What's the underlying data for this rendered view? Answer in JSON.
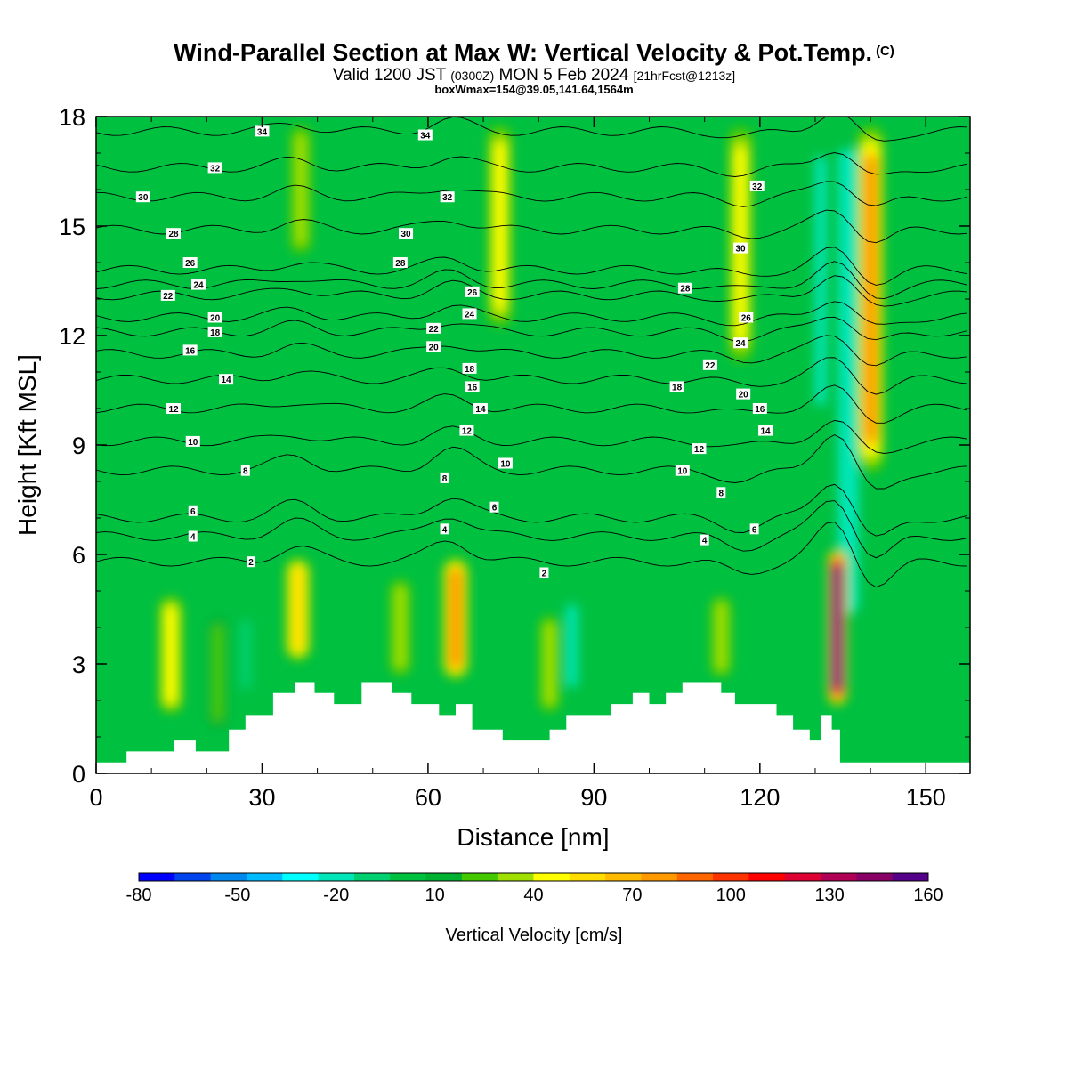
{
  "header": {
    "title": "Wind-Parallel Section at Max W: Vertical Velocity & Pot.Temp.",
    "title_suffix": "(C)",
    "valid_prefix": "Valid 1200 JST",
    "valid_zulu": "(0300Z)",
    "valid_date": "MON 5 Feb 2024",
    "valid_fcst": "[21hrFcst@1213z]",
    "boxinfo": "boxWmax=154@39.05,141.64,1564m"
  },
  "chart_data": {
    "type": "heatmap",
    "title": "Wind-Parallel Section at Max W: Vertical Velocity & Pot.Temp.",
    "xlabel": "Distance [nm]",
    "ylabel": "Height [Kft MSL]",
    "xlim": [
      0,
      158
    ],
    "ylim": [
      0,
      18
    ],
    "xticks": [
      0,
      30,
      60,
      90,
      120,
      150
    ],
    "yticks": [
      0,
      3,
      6,
      9,
      12,
      15,
      18
    ],
    "colorbar": {
      "label": "Vertical Velocity [cm/s]",
      "min": -80,
      "max": 160,
      "tick_values": [
        -80,
        -50,
        -20,
        10,
        40,
        70,
        100,
        130,
        160
      ],
      "colors": [
        "#0000ff",
        "#0044ee",
        "#0088ee",
        "#00bbff",
        "#00ffff",
        "#00e6b8",
        "#00d070",
        "#00c040",
        "#00b030",
        "#44c800",
        "#a0e000",
        "#ffff00",
        "#ffdd00",
        "#ffbb00",
        "#ff9900",
        "#ff6600",
        "#ff3300",
        "#ff0000",
        "#dd0033",
        "#b00055",
        "#880066",
        "#550088"
      ]
    },
    "updrafts": [
      {
        "x": 13.5,
        "zmin": 1.5,
        "zmax": 5.0,
        "w": 45
      },
      {
        "x": 22,
        "zmin": 1.0,
        "zmax": 4.5,
        "w": 25
      },
      {
        "x": 36.5,
        "zmin": 3.0,
        "zmax": 6.0,
        "w": 55
      },
      {
        "x": 55,
        "zmin": 2.5,
        "zmax": 5.5,
        "w": 35
      },
      {
        "x": 65,
        "zmin": 2.5,
        "zmax": 6.0,
        "w": 75
      },
      {
        "x": 82,
        "zmin": 1.5,
        "zmax": 4.5,
        "w": 30
      },
      {
        "x": 113,
        "zmin": 2.5,
        "zmax": 5.0,
        "w": 35
      },
      {
        "x": 134,
        "zmin": 1.8,
        "zmax": 6.2,
        "w": 150
      },
      {
        "x": 140,
        "zmin": 8.0,
        "zmax": 18.0,
        "w": 75
      },
      {
        "x": 116.5,
        "zmin": 11.0,
        "zmax": 18.0,
        "w": 45
      },
      {
        "x": 73,
        "zmin": 12.0,
        "zmax": 18.0,
        "w": 40
      },
      {
        "x": 37,
        "zmin": 14.0,
        "zmax": 18.0,
        "w": 30
      }
    ],
    "downdrafts": [
      {
        "x": 136,
        "zmin": 3.5,
        "zmax": 18.0,
        "w": -25
      },
      {
        "x": 131,
        "zmin": 9.0,
        "zmax": 18.0,
        "w": -20
      },
      {
        "x": 86,
        "zmin": 2.0,
        "zmax": 5.0,
        "w": -15
      },
      {
        "x": 27,
        "zmin": 2.0,
        "zmax": 4.5,
        "w": -10
      }
    ],
    "terrain": {
      "x": [
        0,
        5.5,
        5.5,
        14,
        14,
        18,
        18,
        24,
        24,
        27,
        27,
        32,
        32,
        36,
        36,
        39.5,
        39.5,
        43,
        43,
        48,
        48,
        53.5,
        53.5,
        57,
        57,
        62,
        62,
        65,
        65,
        68,
        68,
        73.5,
        73.5,
        82,
        82,
        85,
        85,
        93,
        93,
        97,
        97,
        100,
        100,
        103,
        103,
        106,
        106,
        113,
        113,
        115.5,
        115.5,
        123,
        123,
        126,
        126,
        129,
        129,
        131,
        131,
        133,
        133,
        134.5,
        134.5,
        137,
        137,
        158
      ],
      "z": [
        0.3,
        0.3,
        0.6,
        0.6,
        0.9,
        0.9,
        0.6,
        0.6,
        1.2,
        1.2,
        1.6,
        1.6,
        2.2,
        2.2,
        2.5,
        2.5,
        2.2,
        2.2,
        1.9,
        1.9,
        2.5,
        2.5,
        2.2,
        2.2,
        1.9,
        1.9,
        1.6,
        1.6,
        1.9,
        1.9,
        1.2,
        1.2,
        0.9,
        0.9,
        1.2,
        1.2,
        1.6,
        1.6,
        1.9,
        1.9,
        2.2,
        2.2,
        1.9,
        1.9,
        2.2,
        2.2,
        2.5,
        2.5,
        2.2,
        2.2,
        1.9,
        1.9,
        1.6,
        1.6,
        1.2,
        1.2,
        0.9,
        0.9,
        1.6,
        1.6,
        1.2,
        1.2,
        0.3,
        0.3,
        0.3,
        0.3
      ]
    },
    "isentropes": {
      "levels": [
        2,
        4,
        6,
        8,
        10,
        12,
        14,
        16,
        18,
        20,
        22,
        24,
        26,
        28,
        30,
        32,
        34
      ],
      "base_heights": [
        5.8,
        6.5,
        7.0,
        8.3,
        9.1,
        10.0,
        10.8,
        11.5,
        12.1,
        12.5,
        13.1,
        13.4,
        13.8,
        14.9,
        15.8,
        16.6,
        17.6
      ],
      "labels": [
        {
          "text": "2",
          "x": 28,
          "z": 5.8
        },
        {
          "text": "2",
          "x": 81,
          "z": 5.5
        },
        {
          "text": "4",
          "x": 17.5,
          "z": 6.5
        },
        {
          "text": "4",
          "x": 63,
          "z": 6.7
        },
        {
          "text": "4",
          "x": 110,
          "z": 6.4
        },
        {
          "text": "6",
          "x": 17.5,
          "z": 7.2
        },
        {
          "text": "6",
          "x": 72,
          "z": 7.3
        },
        {
          "text": "6",
          "x": 119,
          "z": 6.7
        },
        {
          "text": "8",
          "x": 27,
          "z": 8.3
        },
        {
          "text": "8",
          "x": 63,
          "z": 8.1
        },
        {
          "text": "8",
          "x": 113,
          "z": 7.7
        },
        {
          "text": "10",
          "x": 17.5,
          "z": 9.1
        },
        {
          "text": "10",
          "x": 74,
          "z": 8.5
        },
        {
          "text": "10",
          "x": 106,
          "z": 8.3
        },
        {
          "text": "12",
          "x": 14,
          "z": 10.0
        },
        {
          "text": "12",
          "x": 67,
          "z": 9.4
        },
        {
          "text": "12",
          "x": 109,
          "z": 8.9
        },
        {
          "text": "14",
          "x": 23.5,
          "z": 10.8
        },
        {
          "text": "14",
          "x": 69.5,
          "z": 10.0
        },
        {
          "text": "14",
          "x": 121,
          "z": 9.4
        },
        {
          "text": "16",
          "x": 17,
          "z": 11.6
        },
        {
          "text": "16",
          "x": 68,
          "z": 10.6
        },
        {
          "text": "16",
          "x": 120,
          "z": 10.0
        },
        {
          "text": "18",
          "x": 21.5,
          "z": 12.1
        },
        {
          "text": "18",
          "x": 67.5,
          "z": 11.1
        },
        {
          "text": "18",
          "x": 105,
          "z": 10.6
        },
        {
          "text": "20",
          "x": 21.5,
          "z": 12.5
        },
        {
          "text": "20",
          "x": 61,
          "z": 11.7
        },
        {
          "text": "20",
          "x": 117,
          "z": 10.4
        },
        {
          "text": "22",
          "x": 13,
          "z": 13.1
        },
        {
          "text": "22",
          "x": 61,
          "z": 12.2
        },
        {
          "text": "22",
          "x": 111,
          "z": 11.2
        },
        {
          "text": "24",
          "x": 18.5,
          "z": 13.4
        },
        {
          "text": "24",
          "x": 67.5,
          "z": 12.6
        },
        {
          "text": "24",
          "x": 116.5,
          "z": 11.8
        },
        {
          "text": "26",
          "x": 17,
          "z": 14.0
        },
        {
          "text": "26",
          "x": 68,
          "z": 13.2
        },
        {
          "text": "26",
          "x": 117.5,
          "z": 12.5
        },
        {
          "text": "28",
          "x": 14,
          "z": 14.8
        },
        {
          "text": "28",
          "x": 55,
          "z": 14.0
        },
        {
          "text": "28",
          "x": 106.5,
          "z": 13.3
        },
        {
          "text": "30",
          "x": 8.5,
          "z": 15.8
        },
        {
          "text": "30",
          "x": 56,
          "z": 14.8
        },
        {
          "text": "30",
          "x": 116.5,
          "z": 14.4
        },
        {
          "text": "32",
          "x": 21.5,
          "z": 16.6
        },
        {
          "text": "32",
          "x": 63.5,
          "z": 15.8
        },
        {
          "text": "32",
          "x": 119.5,
          "z": 16.1
        },
        {
          "text": "34",
          "x": 30,
          "z": 17.6
        },
        {
          "text": "34",
          "x": 59.5,
          "z": 17.5
        }
      ]
    }
  }
}
